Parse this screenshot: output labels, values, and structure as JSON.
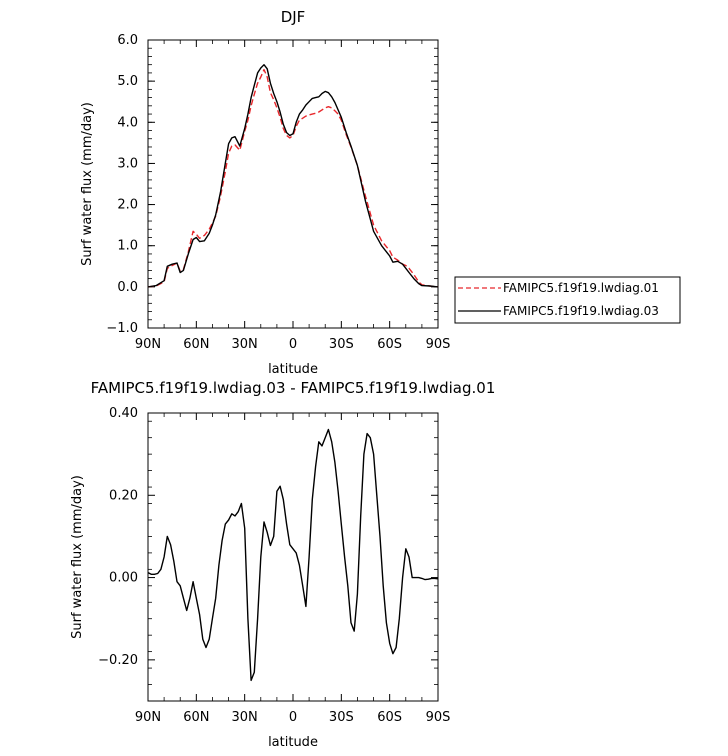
{
  "chart_data": [
    {
      "type": "line",
      "title": "DJF",
      "xlabel": "latitude",
      "ylabel": "Surf water flux (mm/day)",
      "xlim": [
        90,
        -90
      ],
      "ylim": [
        -1.0,
        6.0
      ],
      "xticks": [
        "90N",
        "60N",
        "30N",
        "0",
        "30S",
        "60S",
        "90S"
      ],
      "yticks": [
        "-1.0",
        "0.0",
        "1.0",
        "2.0",
        "3.0",
        "4.0",
        "5.0",
        "6.0"
      ],
      "legend_position": "right",
      "series": [
        {
          "name": "FAMIPC5.f19f19.lwdiag.01",
          "color": "#e8282c",
          "dash": "dashed",
          "x": [
            90,
            85,
            80,
            78,
            75,
            72,
            70,
            68,
            65,
            62,
            60,
            58,
            55,
            52,
            50,
            48,
            45,
            42,
            40,
            38,
            36,
            33,
            30,
            28,
            26,
            24,
            22,
            20,
            18,
            16,
            14,
            12,
            10,
            8,
            6,
            4,
            2,
            0,
            -2,
            -4,
            -6,
            -8,
            -10,
            -12,
            -14,
            -16,
            -18,
            -20,
            -22,
            -24,
            -26,
            -28,
            -30,
            -33,
            -36,
            -40,
            -45,
            -50,
            -55,
            -60,
            -62,
            -65,
            -68,
            -70,
            -72,
            -75,
            -78,
            -80,
            -85,
            -90
          ],
          "values": [
            0.0,
            0.02,
            0.12,
            0.45,
            0.52,
            0.58,
            0.38,
            0.42,
            0.85,
            1.35,
            1.28,
            1.18,
            1.25,
            1.4,
            1.55,
            1.72,
            2.2,
            2.8,
            3.25,
            3.42,
            3.45,
            3.32,
            3.78,
            4.05,
            4.4,
            4.68,
            4.95,
            5.1,
            5.28,
            5.1,
            4.72,
            4.55,
            4.35,
            4.12,
            3.85,
            3.68,
            3.62,
            3.68,
            3.9,
            4.05,
            4.1,
            4.15,
            4.18,
            4.2,
            4.22,
            4.25,
            4.3,
            4.35,
            4.38,
            4.35,
            4.28,
            4.2,
            4.05,
            3.7,
            3.4,
            2.95,
            2.2,
            1.5,
            1.12,
            0.88,
            0.72,
            0.65,
            0.55,
            0.52,
            0.45,
            0.3,
            0.12,
            0.05,
            0.02,
            0.0
          ]
        },
        {
          "name": "FAMIPC5.f19f19.lwdiag.03",
          "color": "#000000",
          "dash": "solid",
          "x": [
            90,
            85,
            80,
            78,
            75,
            72,
            70,
            68,
            65,
            62,
            60,
            58,
            55,
            52,
            50,
            48,
            45,
            42,
            40,
            38,
            36,
            33,
            30,
            28,
            26,
            24,
            22,
            20,
            18,
            16,
            14,
            12,
            10,
            8,
            6,
            4,
            2,
            0,
            -2,
            -4,
            -6,
            -8,
            -10,
            -12,
            -14,
            -16,
            -18,
            -20,
            -22,
            -24,
            -26,
            -28,
            -30,
            -33,
            -36,
            -40,
            -45,
            -50,
            -55,
            -60,
            -62,
            -65,
            -68,
            -70,
            -72,
            -75,
            -78,
            -80,
            -85,
            -90
          ],
          "values": [
            0.0,
            0.03,
            0.15,
            0.5,
            0.55,
            0.58,
            0.35,
            0.4,
            0.8,
            1.15,
            1.2,
            1.1,
            1.12,
            1.3,
            1.5,
            1.75,
            2.3,
            3.0,
            3.48,
            3.62,
            3.65,
            3.42,
            3.85,
            4.2,
            4.6,
            4.9,
            5.2,
            5.32,
            5.4,
            5.3,
            4.95,
            4.7,
            4.5,
            4.25,
            3.95,
            3.75,
            3.68,
            3.72,
            4.0,
            4.2,
            4.3,
            4.42,
            4.5,
            4.58,
            4.6,
            4.62,
            4.7,
            4.75,
            4.72,
            4.62,
            4.48,
            4.3,
            4.12,
            3.75,
            3.42,
            2.95,
            2.08,
            1.35,
            1.0,
            0.75,
            0.6,
            0.62,
            0.55,
            0.45,
            0.35,
            0.2,
            0.08,
            0.03,
            0.02,
            0.0
          ]
        }
      ]
    },
    {
      "type": "line",
      "title": "FAMIPC5.f19f19.lwdiag.03 - FAMIPC5.f19f19.lwdiag.01",
      "xlabel": "latitude",
      "ylabel": "Surf water flux (mm/day)",
      "xlim": [
        90,
        -90
      ],
      "ylim": [
        -0.3,
        0.4
      ],
      "xticks": [
        "90N",
        "60N",
        "30N",
        "0",
        "30S",
        "60S",
        "90S"
      ],
      "yticks": [
        "-0.20",
        "0.00",
        "0.20",
        "0.40"
      ],
      "series": [
        {
          "color": "#000000",
          "dash": "solid",
          "x": [
            90,
            88,
            86,
            84,
            82,
            80,
            78,
            76,
            74,
            72,
            70,
            68,
            66,
            64,
            62,
            60,
            58,
            56,
            54,
            52,
            50,
            48,
            46,
            44,
            42,
            40,
            38,
            36,
            34,
            32,
            30,
            28,
            26,
            24,
            22,
            20,
            18,
            16,
            14,
            12,
            10,
            8,
            6,
            4,
            2,
            0,
            -2,
            -4,
            -6,
            -8,
            -10,
            -12,
            -14,
            -16,
            -18,
            -20,
            -22,
            -24,
            -26,
            -28,
            -30,
            -32,
            -34,
            -36,
            -38,
            -40,
            -42,
            -44,
            -46,
            -48,
            -50,
            -52,
            -54,
            -56,
            -58,
            -60,
            -62,
            -64,
            -66,
            -68,
            -70,
            -72,
            -74,
            -76,
            -78,
            -80,
            -82,
            -84,
            -86,
            -88,
            -90
          ],
          "values": [
            0.012,
            0.008,
            0.008,
            0.01,
            0.02,
            0.05,
            0.1,
            0.08,
            0.04,
            -0.01,
            -0.02,
            -0.05,
            -0.08,
            -0.05,
            -0.01,
            -0.05,
            -0.09,
            -0.15,
            -0.17,
            -0.15,
            -0.1,
            -0.05,
            0.03,
            0.09,
            0.13,
            0.14,
            0.155,
            0.15,
            0.16,
            0.18,
            0.12,
            -0.1,
            -0.25,
            -0.23,
            -0.1,
            0.05,
            0.135,
            0.11,
            0.078,
            0.1,
            0.21,
            0.222,
            0.19,
            0.13,
            0.08,
            0.07,
            0.06,
            0.03,
            -0.02,
            -0.07,
            0.05,
            0.19,
            0.27,
            0.33,
            0.32,
            0.34,
            0.36,
            0.33,
            0.28,
            0.21,
            0.13,
            0.05,
            -0.02,
            -0.11,
            -0.13,
            -0.04,
            0.15,
            0.3,
            0.35,
            0.34,
            0.3,
            0.2,
            0.1,
            -0.02,
            -0.11,
            -0.16,
            -0.185,
            -0.17,
            -0.1,
            0.0,
            0.07,
            0.05,
            0.0,
            0.0,
            0.0,
            -0.002,
            -0.005,
            -0.004,
            -0.002,
            -0.002,
            -0.003
          ]
        }
      ]
    }
  ]
}
